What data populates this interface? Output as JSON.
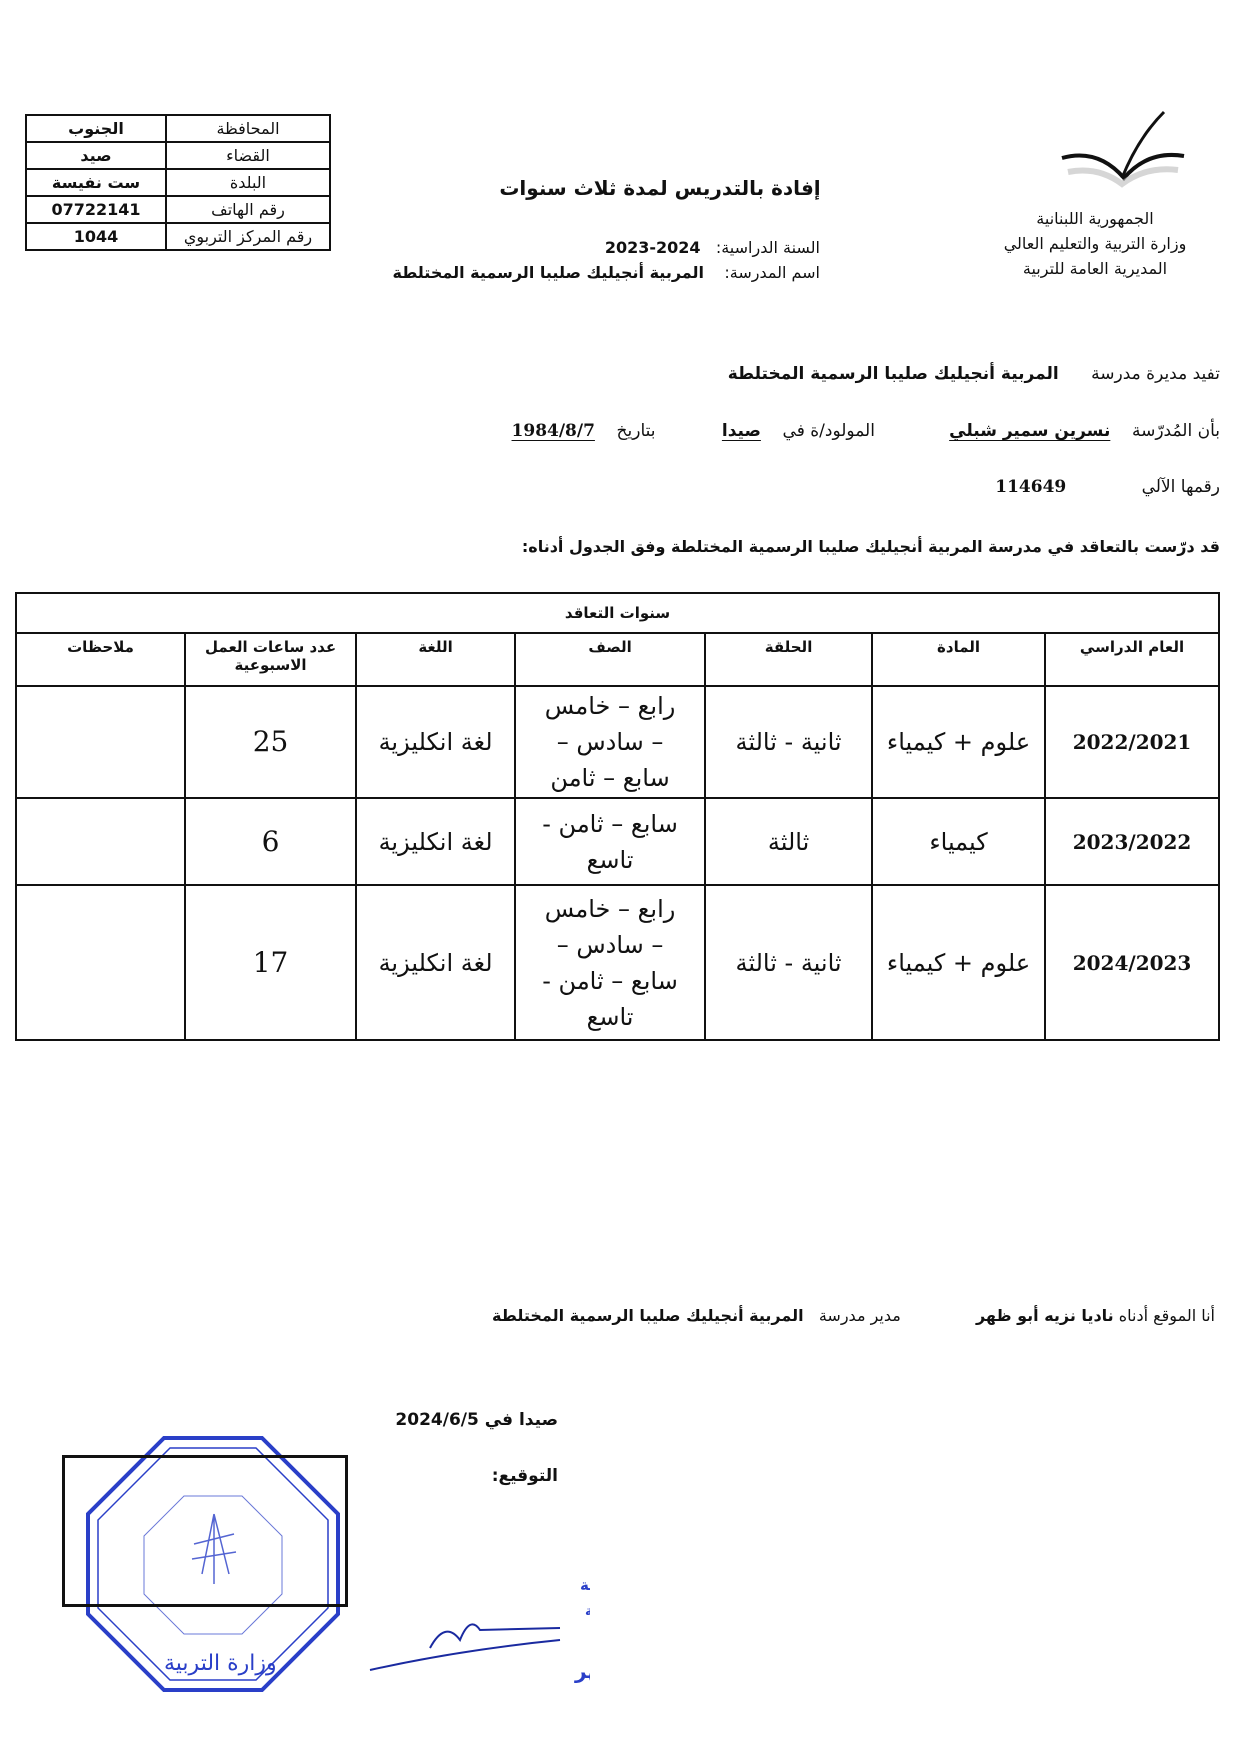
{
  "header": {
    "republic": "الجمهورية اللبنانية",
    "ministry": "وزارة التربية والتعليم العالي",
    "directorate": "المديرية العامة للتربية",
    "title": "إفادة بالتدريس لمدة ثلاث سنوات",
    "year_label": "السنة الدراسية:",
    "year_value": "2024-2023",
    "school_label": "اسم المدرسة:",
    "school_value": "المربية أنجيليك صليبا الرسمية المختلطة"
  },
  "info_table": [
    {
      "label": "المحافظة",
      "value": "الجنوب"
    },
    {
      "label": "القضاء",
      "value": "صيد"
    },
    {
      "label": "البلدة",
      "value": "ست نفيسة"
    },
    {
      "label": "رقم الهاتف",
      "value": "07722141"
    },
    {
      "label": "رقم المركز التربوي",
      "value": "1044"
    }
  ],
  "body": {
    "l1_prefix": "تفيد مديرة مدرسة",
    "l1_school": "المربية أنجيليك صليبا الرسمية المختلطة",
    "l2_prefix": "بأن المُدرّسة",
    "teacher_name": "نسرين سمير شبلي",
    "born_label": "المولود/ة في",
    "birth_place": "صيدا",
    "date_label": "بتاريخ",
    "birth_date": "1984/8/7",
    "id_label": "رقمها الآلي",
    "id_value": "114649",
    "l4": "قد درّست بالتعاقد في مدرسة المربية أنجيليك صليبا الرسمية المختلطة وفق الجدول أدناه:"
  },
  "main_table": {
    "caption": "سنوات التعاقد",
    "headers": [
      "العام الدراسي",
      "المادة",
      "الحلقة",
      "الصف",
      "اللغة",
      "عدد ساعات العمل الاسبوعية",
      "ملاحظات"
    ],
    "rows": [
      {
        "year": "2022/2021",
        "subject": "علوم + كيمياء",
        "cycle": "ثانية - ثالثة",
        "grade": "رابع – خامس – سادس – سابع – ثامن",
        "language": "لغة انكليزية",
        "hours": "25",
        "notes": ""
      },
      {
        "year": "2023/2022",
        "subject": "كيمياء",
        "cycle": "ثالثة",
        "grade": "سابع – ثامن - تاسع",
        "language": "لغة انكليزية",
        "hours": "6",
        "notes": ""
      },
      {
        "year": "2024/2023",
        "subject": "علوم + كيمياء",
        "cycle": "ثانية - ثالثة",
        "grade": "رابع – خامس – سادس – سابع – ثامن - تاسع",
        "language": "لغة انكليزية",
        "hours": "17",
        "notes": ""
      }
    ]
  },
  "footer": {
    "signer_prefix": "أنا الموقع أدناه",
    "signer_name": "ناديا نزيه أبو ظهر",
    "role": "مدير مدرسة",
    "school": "المربية أنجيليك صليبا الرسمية المختلطة",
    "place_date": "صيدا في 2024/6/5",
    "signature_label": "التوقيع:",
    "stamp_text": "مديرة مدرسة المربية أنجيليك صليبا الرسمية المختلطة ناديا نزيه أبو ظهر",
    "seal_text": "الجمهورية اللبنانية وزارة التربية والتعليم العالي"
  },
  "colors": {
    "ink": "#111111",
    "stamp": "#2a3fc8"
  }
}
